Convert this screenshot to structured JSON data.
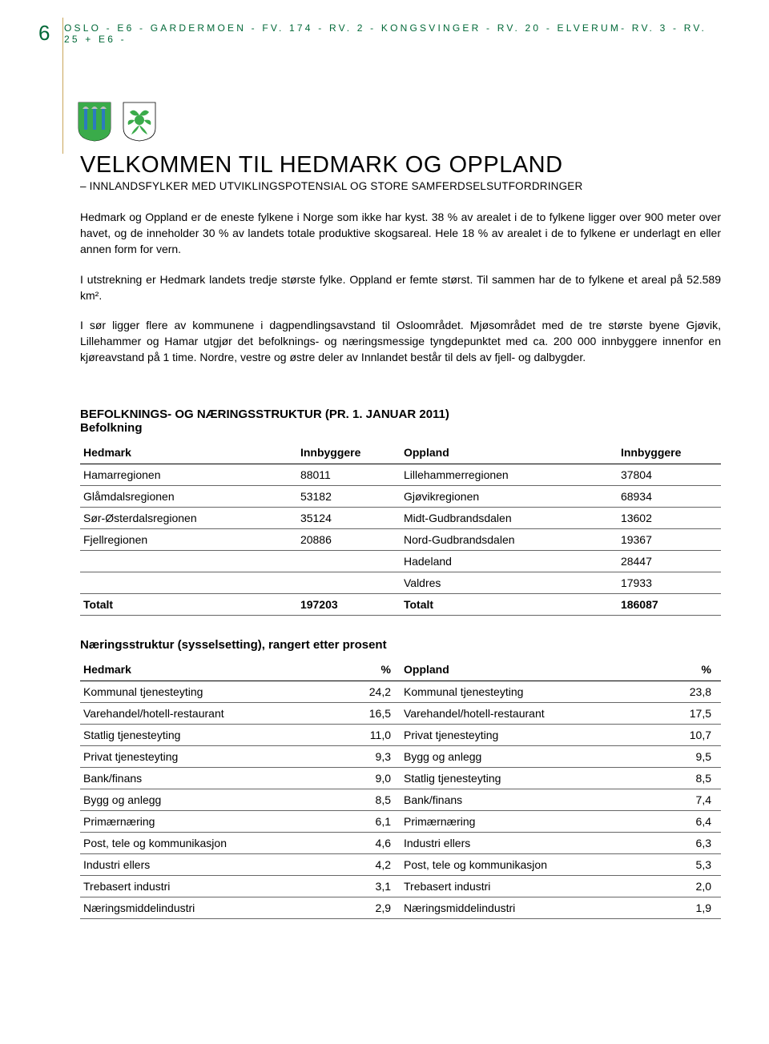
{
  "page_number": "6",
  "header_text": "OSLO - E6 - GARDERMOEN - FV. 174 - RV. 2 - KONGSVINGER - RV. 20 - ELVERUM- RV. 3 - RV. 25 + E6 -",
  "title": "VELKOMMEN TIL HEDMARK OG OPPLAND",
  "subtitle": "– INNLANDSFYLKER MED UTVIKLINGSPOTENSIAL OG STORE SAMFERDSELSUTFORDRINGER",
  "colors": {
    "header_green": "#006837",
    "rule_gold": "#c9a55a",
    "hedmark_green": "#3aab4a",
    "hedmark_blue": "#2b7bbf",
    "oppland_green": "#3aab4a"
  },
  "paragraphs": [
    "Hedmark og Oppland er de eneste fylkene i Norge som ikke har kyst. 38 % av arealet i de to fylkene ligger over 900 meter over havet, og de inneholder 30 % av landets totale produktive skogsareal. Hele 18 % av arealet i de to fylkene er underlagt en eller annen form for vern.",
    "I utstrekning er Hedmark landets tredje største fylke. Oppland er femte størst. Til sammen har de to fylkene et areal på 52.589 km².",
    "I sør ligger flere av kommunene i dagpendlingsavstand til Osloområdet. Mjøsområdet med de tre største byene Gjøvik, Lillehammer og Hamar utgjør det befolknings- og næringsmessige tyngdepunktet med ca. 200 000 innbyggere innenfor en kjøreavstand på 1 time. Nordre, vestre og østre deler av Innlandet består til dels av fjell- og dalbygder."
  ],
  "section_heading": "BEFOLKNINGS- OG NÆRINGSSTRUKTUR (PR. 1. JANUAR 2011)",
  "population": {
    "label": "Befolkning",
    "headers": [
      "Hedmark",
      "Innbyggere",
      "Oppland",
      "Innbyggere"
    ],
    "rows": [
      [
        "Hamarregionen",
        "88011",
        "Lillehammerregionen",
        "37804"
      ],
      [
        "Glåmdalsregionen",
        "53182",
        "Gjøvikregionen",
        "68934"
      ],
      [
        "Sør-Østerdalsregionen",
        "35124",
        "Midt-Gudbrandsdalen",
        "13602"
      ],
      [
        "Fjellregionen",
        "20886",
        "Nord-Gudbrandsdalen",
        "19367"
      ],
      [
        "",
        "",
        "Hadeland",
        "28447"
      ],
      [
        "",
        "",
        "Valdres",
        "17933"
      ]
    ],
    "total": [
      "Totalt",
      "197203",
      "Totalt",
      "186087"
    ]
  },
  "industry": {
    "label": "Næringsstruktur (sysselsetting), rangert etter prosent",
    "headers": [
      "Hedmark",
      "%",
      "Oppland",
      "%"
    ],
    "rows": [
      [
        "Kommunal tjenesteyting",
        "24,2",
        "Kommunal tjenesteyting",
        "23,8"
      ],
      [
        "Varehandel/hotell-restaurant",
        "16,5",
        "Varehandel/hotell-restaurant",
        "17,5"
      ],
      [
        "Statlig tjenesteyting",
        "11,0",
        "Privat tjenesteyting",
        "10,7"
      ],
      [
        "Privat tjenesteyting",
        "9,3",
        "Bygg og anlegg",
        "9,5"
      ],
      [
        "Bank/finans",
        "9,0",
        "Statlig tjenesteyting",
        "8,5"
      ],
      [
        "Bygg og anlegg",
        "8,5",
        "Bank/finans",
        "7,4"
      ],
      [
        "Primærnæring",
        "6,1",
        "Primærnæring",
        "6,4"
      ],
      [
        "Post, tele og kommunikasjon",
        "4,6",
        "Industri ellers",
        "6,3"
      ],
      [
        "Industri ellers",
        "4,2",
        "Post, tele og kommunikasjon",
        "5,3"
      ],
      [
        "Trebasert industri",
        "3,1",
        "Trebasert industri",
        "2,0"
      ],
      [
        "Næringsmiddelindustri",
        "2,9",
        "Næringsmiddelindustri",
        "1,9"
      ]
    ]
  }
}
